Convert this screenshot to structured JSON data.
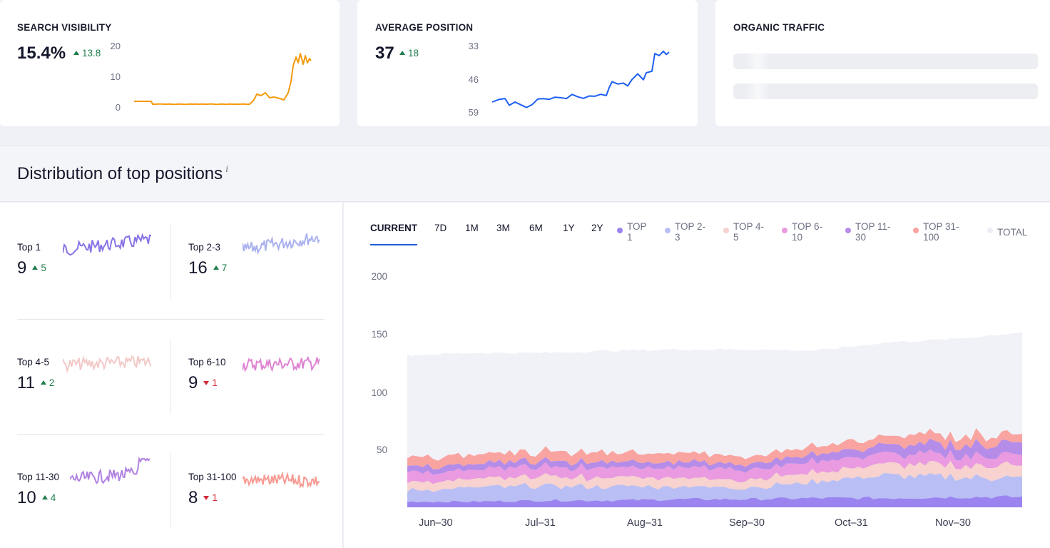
{
  "cards": {
    "visibility": {
      "title": "SEARCH VISIBILITY",
      "value": "15.4%",
      "delta": "13.8",
      "axis": [
        "20",
        "10",
        "0"
      ],
      "color": "#f59a0c"
    },
    "position": {
      "title": "AVERAGE POSITION",
      "value": "37",
      "delta": "18",
      "axis": [
        "33",
        "46",
        "59"
      ],
      "color": "#1d5ff2"
    },
    "traffic": {
      "title": "ORGANIC TRAFFIC"
    }
  },
  "distribution": {
    "title": "Distribution of top positions",
    "info": "i"
  },
  "tiles": [
    {
      "label": "Top 1",
      "value": "9",
      "delta": "5",
      "direction": "up",
      "color": "#8a73e6"
    },
    {
      "label": "Top 2-3",
      "value": "16",
      "delta": "7",
      "direction": "up",
      "color": "#aab1ef"
    },
    {
      "label": "Top 4-5",
      "value": "11",
      "delta": "2",
      "direction": "up",
      "color": "#f2c9c7"
    },
    {
      "label": "Top 6-10",
      "value": "9",
      "delta": "1",
      "direction": "down",
      "color": "#de84d2"
    },
    {
      "label": "Top 11-30",
      "value": "10",
      "delta": "4",
      "direction": "up",
      "color": "#b081e0"
    },
    {
      "label": "Top 31-100",
      "value": "8",
      "delta": "1",
      "direction": "down",
      "color": "#f79a94"
    }
  ],
  "tabs": [
    "CURRENT",
    "7D",
    "1M",
    "3M",
    "6M",
    "1Y",
    "2Y"
  ],
  "active_tab": "CURRENT",
  "legend": [
    {
      "line1": "TOP",
      "line2": "1",
      "color": "#9b84f0"
    },
    {
      "line1": "TOP 2-",
      "line2": "3",
      "color": "#b9bff4"
    },
    {
      "line1": "TOP 4-",
      "line2": "5",
      "color": "#f7d2cf"
    },
    {
      "line1": "TOP 6-",
      "line2": "10",
      "color": "#e99ae0"
    },
    {
      "line1": "TOP 11-",
      "line2": "30",
      "color": "#b58ce8"
    },
    {
      "line1": "TOP 31-",
      "line2": "100",
      "color": "#f9a4a0"
    },
    {
      "line1": "TOTAL",
      "line2": "",
      "color": "#eceef3"
    }
  ],
  "chart_data": {
    "type": "area",
    "stacked": true,
    "ylim": [
      0,
      200
    ],
    "yticks": [
      "200",
      "150",
      "100",
      "50"
    ],
    "x_ticks": [
      "Jun–30",
      "Jul–31",
      "Aug–31",
      "Sep–30",
      "Oct–31",
      "Nov–30"
    ],
    "series": [
      {
        "name": "TOP 1",
        "values": [
          5,
          5,
          6,
          6,
          7,
          7,
          8,
          8,
          9,
          9
        ]
      },
      {
        "name": "TOP 2-3",
        "values": [
          10,
          12,
          13,
          12,
          11,
          10,
          14,
          20,
          18,
          16
        ]
      },
      {
        "name": "TOP 4-5",
        "values": [
          7,
          7,
          8,
          8,
          8,
          7,
          8,
          10,
          10,
          11
        ]
      },
      {
        "name": "TOP 6-10",
        "values": [
          8,
          8,
          8,
          9,
          9,
          9,
          9,
          9,
          9,
          9
        ]
      },
      {
        "name": "TOP 11-30",
        "values": [
          5,
          5,
          5,
          5,
          5,
          5,
          6,
          8,
          9,
          10
        ]
      },
      {
        "name": "TOP 31-100",
        "values": [
          8,
          8,
          8,
          8,
          8,
          7,
          7,
          8,
          8,
          8
        ]
      },
      {
        "name": "TOTAL",
        "values": [
          132,
          134,
          134,
          136,
          137,
          137,
          136,
          143,
          146,
          152
        ]
      }
    ]
  }
}
